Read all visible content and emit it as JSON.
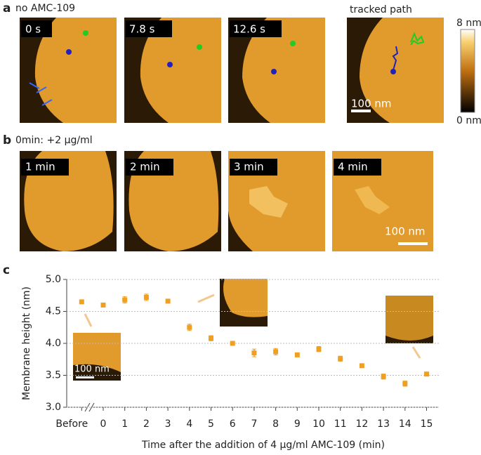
{
  "panel_a": {
    "label": "a",
    "condition": "no AMC-109",
    "frames": [
      "0 s",
      "7.8 s",
      "12.6 s"
    ],
    "tracked_title": "tracked path",
    "scale_bar": "100 nm",
    "colorbar_max": "8 nm",
    "colorbar_min": "0 nm"
  },
  "panel_b": {
    "label": "b",
    "condition": "0min: +2 μg/ml",
    "frames": [
      "1 min",
      "2 min",
      "3 min",
      "4 min"
    ],
    "scale_bar": "100 nm"
  },
  "chart_data": {
    "type": "errorbar",
    "label": "c",
    "inset_scale_bar": "100 nm",
    "y_label": "Membrane height (nm)",
    "x_label": "Time after the addition of 4 μg/ml AMC-109 (min)",
    "categories": [
      "Before",
      "0",
      "1",
      "2",
      "3",
      "4",
      "5",
      "6",
      "7",
      "8",
      "9",
      "10",
      "11",
      "12",
      "13",
      "14",
      "15"
    ],
    "values": [
      4.65,
      4.6,
      4.68,
      4.72,
      4.66,
      4.25,
      4.08,
      4.0,
      3.85,
      3.87,
      3.82,
      3.91,
      3.76,
      3.65,
      3.48,
      3.37,
      3.52
    ],
    "errors": [
      0.01,
      0.03,
      0.05,
      0.05,
      0.02,
      0.05,
      0.04,
      0.02,
      0.06,
      0.05,
      0.02,
      0.04,
      0.04,
      0.02,
      0.04,
      0.04,
      0.02
    ],
    "color": "#f0a020",
    "ylim": [
      3.0,
      5.0
    ],
    "yticks": [
      {
        "value": 3,
        "label": "3.0"
      },
      {
        "value": 3.5,
        "label": "3.5"
      },
      {
        "value": 4,
        "label": "4.0"
      },
      {
        "value": 4.5,
        "label": "4.5"
      },
      {
        "value": 5,
        "label": "5.0"
      }
    ],
    "grid": true
  }
}
